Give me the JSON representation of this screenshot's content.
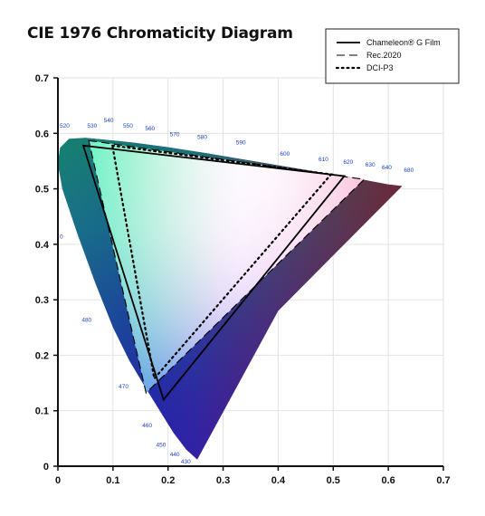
{
  "chart_data": {
    "type": "scatter",
    "title": "CIE 1976 Chromaticity Diagram",
    "xlabel": "",
    "ylabel": "",
    "xlim": [
      0,
      0.7
    ],
    "ylim": [
      0,
      0.7
    ],
    "x_ticks": [
      "0",
      "0.1",
      "0.2",
      "0.3",
      "0.4",
      "0.5",
      "0.6",
      "0.7"
    ],
    "y_ticks": [
      "0",
      "0.1",
      "0.2",
      "0.3",
      "0.4",
      "0.5",
      "0.6",
      "0.7"
    ],
    "grid": true,
    "legend_position": "top-right",
    "locus": [
      {
        "label": "0",
        "x": 0.0,
        "y": 0.41
      },
      {
        "label": "520",
        "x": 0.0,
        "y": 0.61
      },
      {
        "label": "530",
        "x": 0.05,
        "y": 0.61
      },
      {
        "label": "540",
        "x": 0.08,
        "y": 0.62
      },
      {
        "label": "550",
        "x": 0.115,
        "y": 0.61
      },
      {
        "label": "560",
        "x": 0.155,
        "y": 0.605
      },
      {
        "label": "570",
        "x": 0.2,
        "y": 0.595
      },
      {
        "label": "580",
        "x": 0.25,
        "y": 0.59
      },
      {
        "label": "590",
        "x": 0.32,
        "y": 0.58
      },
      {
        "label": "600",
        "x": 0.4,
        "y": 0.56
      },
      {
        "label": "610",
        "x": 0.47,
        "y": 0.55
      },
      {
        "label": "620",
        "x": 0.515,
        "y": 0.545
      },
      {
        "label": "630",
        "x": 0.555,
        "y": 0.54
      },
      {
        "label": "640",
        "x": 0.585,
        "y": 0.535
      },
      {
        "label": "680",
        "x": 0.625,
        "y": 0.53
      },
      {
        "label": "480",
        "x": 0.04,
        "y": 0.26
      },
      {
        "label": "470",
        "x": 0.107,
        "y": 0.14
      },
      {
        "label": "460",
        "x": 0.15,
        "y": 0.07
      },
      {
        "label": "450",
        "x": 0.175,
        "y": 0.035
      },
      {
        "label": "440",
        "x": 0.2,
        "y": 0.018
      },
      {
        "label": "430",
        "x": 0.22,
        "y": 0.005
      }
    ],
    "series": [
      {
        "name": "Chameleon® G Film",
        "style": "solid",
        "points": [
          [
            0.046,
            0.578
          ],
          [
            0.52,
            0.523
          ],
          [
            0.192,
            0.12
          ]
        ]
      },
      {
        "name": "Rec.2020",
        "style": "dashed",
        "points": [
          [
            0.056,
            0.587
          ],
          [
            0.556,
            0.517
          ],
          [
            0.16,
            0.132
          ]
        ]
      },
      {
        "name": "DCI-P3",
        "style": "dotted",
        "points": [
          [
            0.099,
            0.578
          ],
          [
            0.496,
            0.526
          ],
          [
            0.175,
            0.158
          ]
        ]
      }
    ]
  },
  "colors": {
    "locus_green": "#1aa33a",
    "locus_teal": "#1f8a8a",
    "locus_blue": "#1d2b9c",
    "locus_violet": "#3b1fa0",
    "locus_purple": "#7a1b7e",
    "locus_red": "#8e0a14",
    "label_blue": "#1d3fc4",
    "line": "#000000"
  }
}
